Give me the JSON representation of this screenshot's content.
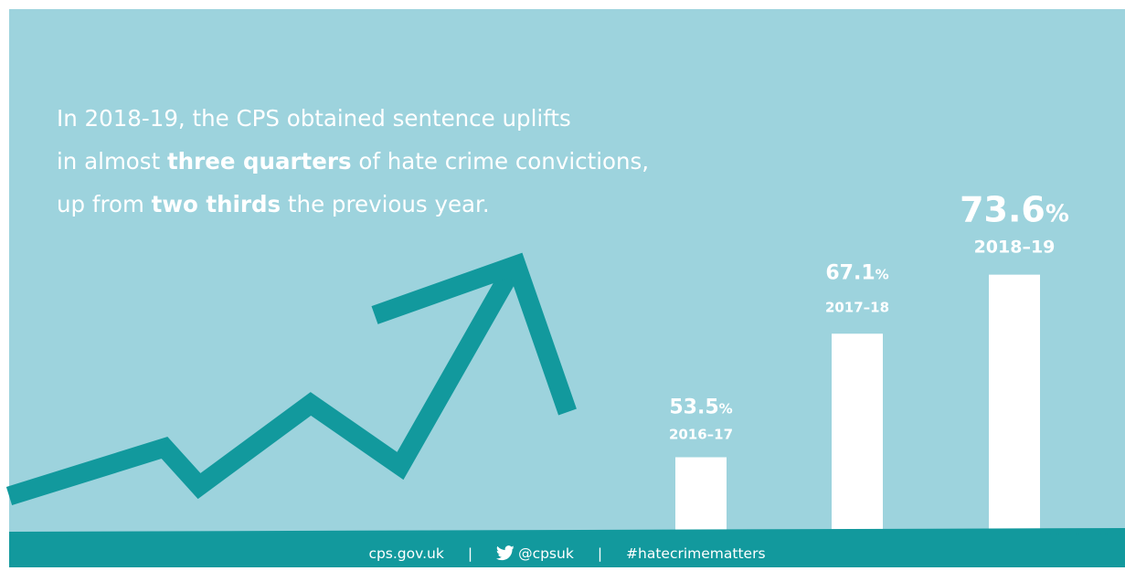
{
  "headline": {
    "line1": "In 2018-19, the CPS obtained sentence uplifts",
    "line2_pre": "in almost ",
    "line2_bold": "three quarters",
    "line2_post": " of hate crime convictions,",
    "line3_pre": "up from ",
    "line3_bold": "two thirds",
    "line3_post": " the previous year."
  },
  "footer": {
    "website": "cps.gov.uk",
    "separator": "|",
    "twitter_handle": "@cpsuk",
    "hashtag": "#hatecrimematters",
    "twitter_icon": "twitter-bird-icon"
  },
  "colors": {
    "background": "#9dd3dd",
    "teal": "#12999d",
    "bar": "#ffffff",
    "text": "#ffffff"
  },
  "decoration": {
    "icon": "trend-up-arrow-icon"
  },
  "chart_data": {
    "type": "bar",
    "categories": [
      "2016–17",
      "2017–18",
      "2018–19"
    ],
    "values": [
      53.5,
      67.1,
      73.6
    ],
    "value_labels": [
      "53.5",
      "67.1",
      "73.6"
    ],
    "unit": "%",
    "ylim": [
      45,
      80
    ],
    "grid": false,
    "legend": "none"
  }
}
